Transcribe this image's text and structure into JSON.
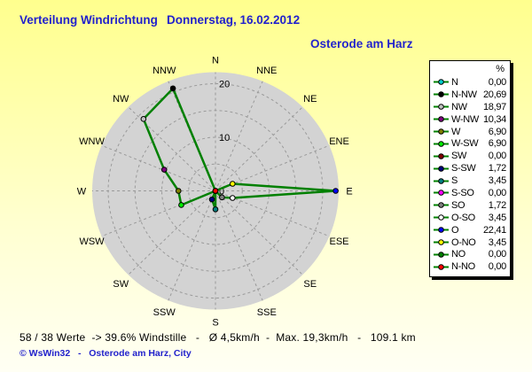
{
  "header": {
    "title": "Verteilung Windrichtung",
    "date": "Donnerstag, 16.02.2012",
    "station": "Osterode am Harz"
  },
  "legend": {
    "unit_header": "%"
  },
  "status": {
    "text": "58 / 38 Werte  -> 39.6% Windstille   -   Ø 4,5km/h  -  Max. 19,3km/h   -   109.1 km"
  },
  "footer": {
    "text": "© WsWin32   -   Osterode am Harz, City"
  },
  "chart_data": {
    "type": "radar",
    "title": "Verteilung Windrichtung (wind direction distribution, %)",
    "unit": "%",
    "axis_ticks": [
      "0",
      "10",
      "20"
    ],
    "axis_tick_values": [
      0,
      10,
      20
    ],
    "axis_max": 23,
    "grid_rings": [
      5,
      10,
      15,
      20
    ],
    "compass_labels": [
      "N",
      "NNE",
      "NE",
      "ENE",
      "E",
      "ESE",
      "SE",
      "SSE",
      "S",
      "SSW",
      "SW",
      "WSW",
      "W",
      "WNW",
      "NW",
      "NNW"
    ],
    "line_color": "#008000",
    "disc_color": "#d3d3d3",
    "grid_color": "#9a9a9a",
    "legend_position": "right",
    "series": [
      {
        "name": "N",
        "value": 0.0,
        "display": "0,00",
        "color": "#00cccc",
        "dir_deg": 0
      },
      {
        "name": "N-NW",
        "value": 20.69,
        "display": "20,69",
        "color": "#000000",
        "dir_deg": 337.5
      },
      {
        "name": "NW",
        "value": 18.97,
        "display": "18,97",
        "color": "#c0c0c0",
        "dir_deg": 315
      },
      {
        "name": "W-NW",
        "value": 10.34,
        "display": "10,34",
        "color": "#800080",
        "dir_deg": 292.5
      },
      {
        "name": "W",
        "value": 6.9,
        "display": "6,90",
        "color": "#808000",
        "dir_deg": 270
      },
      {
        "name": "W-SW",
        "value": 6.9,
        "display": "6,90",
        "color": "#00ee00",
        "dir_deg": 247.5
      },
      {
        "name": "SW",
        "value": 0.0,
        "display": "0,00",
        "color": "#800000",
        "dir_deg": 225
      },
      {
        "name": "S-SW",
        "value": 1.72,
        "display": "1,72",
        "color": "#000080",
        "dir_deg": 202.5
      },
      {
        "name": "S",
        "value": 3.45,
        "display": "3,45",
        "color": "#008080",
        "dir_deg": 180
      },
      {
        "name": "S-SO",
        "value": 0.0,
        "display": "0,00",
        "color": "#ff00ff",
        "dir_deg": 157.5
      },
      {
        "name": "SO",
        "value": 1.72,
        "display": "1,72",
        "color": "#808080",
        "dir_deg": 135
      },
      {
        "name": "O-SO",
        "value": 3.45,
        "display": "3,45",
        "color": "#ffffff",
        "dir_deg": 112.5
      },
      {
        "name": "O",
        "value": 22.41,
        "display": "22,41",
        "color": "#0000ff",
        "dir_deg": 90
      },
      {
        "name": "O-NO",
        "value": 3.45,
        "display": "3,45",
        "color": "#ffff00",
        "dir_deg": 67.5
      },
      {
        "name": "NO",
        "value": 0.0,
        "display": "0,00",
        "color": "#008000",
        "dir_deg": 45
      },
      {
        "name": "N-NO",
        "value": 0.0,
        "display": "0,00",
        "color": "#ff0000",
        "dir_deg": 22.5
      }
    ]
  }
}
